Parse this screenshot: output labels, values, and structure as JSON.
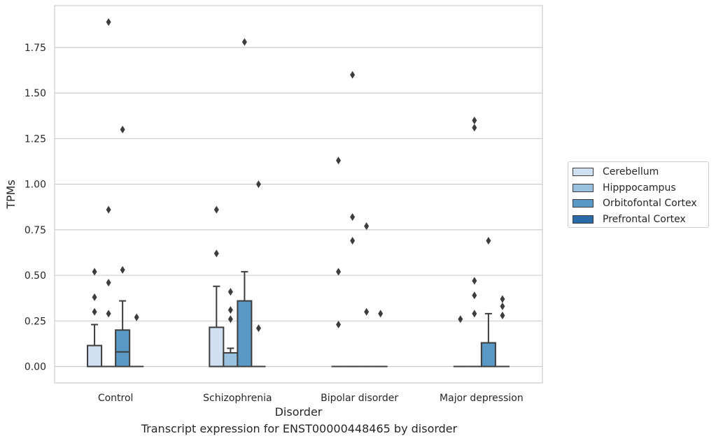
{
  "chart_data": {
    "type": "box",
    "title": "",
    "xlabel": "Disorder",
    "ylabel": "TPMs",
    "ylim": [
      -0.09,
      1.98
    ],
    "yticks": [
      "0.00",
      "0.25",
      "0.50",
      "0.75",
      "1.00",
      "1.25",
      "1.50",
      "1.75"
    ],
    "grid": "horizontal",
    "legend_position": "right",
    "categories": [
      "Control",
      "Schizophrenia",
      "Bipolar disorder",
      "Major depression"
    ],
    "series": [
      {
        "name": "Cerebellum",
        "color": "#d1e0f0",
        "boxes": [
          {
            "q1": 0,
            "median": 0,
            "q3": 0.115,
            "whisker_low": 0,
            "whisker_high": 0.23,
            "outliers": [
              0.3,
              0.38,
              0.52
            ]
          },
          {
            "q1": 0,
            "median": 0,
            "q3": 0.215,
            "whisker_low": 0,
            "whisker_high": 0.44,
            "outliers": [
              0.62,
              0.86
            ]
          },
          {
            "q1": 0,
            "median": 0,
            "q3": 0,
            "whisker_low": 0,
            "whisker_high": 0,
            "outliers": [
              0.23,
              0.52,
              1.13
            ]
          },
          {
            "q1": 0,
            "median": 0,
            "q3": 0,
            "whisker_low": 0,
            "whisker_high": 0,
            "outliers": [
              0.26
            ]
          }
        ]
      },
      {
        "name": "Hipppocampus",
        "color": "#9ac2de",
        "boxes": [
          {
            "q1": 0,
            "median": 0,
            "q3": 0,
            "whisker_low": 0,
            "whisker_high": 0,
            "outliers": [
              0.29,
              0.46,
              0.86,
              1.89
            ]
          },
          {
            "q1": 0,
            "median": 0,
            "q3": 0.075,
            "whisker_low": 0,
            "whisker_high": 0.1,
            "outliers": [
              0.26,
              0.31,
              0.41
            ]
          },
          {
            "q1": 0,
            "median": 0,
            "q3": 0,
            "whisker_low": 0,
            "whisker_high": 0,
            "outliers": [
              0.69,
              0.82,
              1.6
            ]
          },
          {
            "q1": 0,
            "median": 0,
            "q3": 0,
            "whisker_low": 0,
            "whisker_high": 0,
            "outliers": [
              0.29,
              0.39,
              0.47,
              1.31,
              1.35
            ]
          }
        ]
      },
      {
        "name": "Orbitofontal Cortex",
        "color": "#5a98c6",
        "boxes": [
          {
            "q1": 0,
            "median": 0.08,
            "q3": 0.2,
            "whisker_low": 0,
            "whisker_high": 0.36,
            "outliers": [
              0.53,
              1.3
            ]
          },
          {
            "q1": 0,
            "median": 0,
            "q3": 0.36,
            "whisker_low": 0,
            "whisker_high": 0.52,
            "outliers": [
              1.78
            ]
          },
          {
            "q1": 0,
            "median": 0,
            "q3": 0,
            "whisker_low": 0,
            "whisker_high": 0,
            "outliers": [
              0.3,
              0.77
            ]
          },
          {
            "q1": 0,
            "median": 0,
            "q3": 0.13,
            "whisker_low": 0,
            "whisker_high": 0.29,
            "outliers": [
              0.69
            ]
          }
        ]
      },
      {
        "name": "Prefrontal Cortex",
        "color": "#2a6aa8",
        "boxes": [
          {
            "q1": 0,
            "median": 0,
            "q3": 0,
            "whisker_low": 0,
            "whisker_high": 0,
            "outliers": [
              0.27
            ]
          },
          {
            "q1": 0,
            "median": 0,
            "q3": 0,
            "whisker_low": 0,
            "whisker_high": 0,
            "outliers": [
              0.21,
              1.0
            ]
          },
          {
            "q1": 0,
            "median": 0,
            "q3": 0,
            "whisker_low": 0,
            "whisker_high": 0,
            "outliers": [
              0.29
            ]
          },
          {
            "q1": 0,
            "median": 0,
            "q3": 0,
            "whisker_low": 0,
            "whisker_high": 0,
            "outliers": [
              0.28,
              0.33,
              0.37
            ]
          }
        ]
      }
    ],
    "caption": "Transcript expression for ENST00000448465 by disorder"
  }
}
